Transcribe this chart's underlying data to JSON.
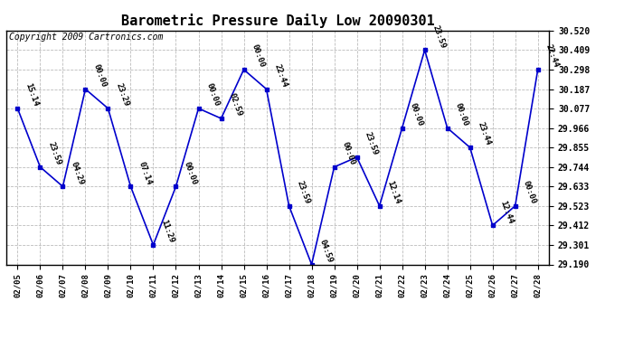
{
  "title": "Barometric Pressure Daily Low 20090301",
  "copyright": "Copyright 2009 Cartronics.com",
  "x_labels": [
    "02/05",
    "02/06",
    "02/07",
    "02/08",
    "02/09",
    "02/10",
    "02/11",
    "02/12",
    "02/13",
    "02/14",
    "02/15",
    "02/16",
    "02/17",
    "02/18",
    "02/19",
    "02/20",
    "02/21",
    "02/22",
    "02/23",
    "02/24",
    "02/25",
    "02/26",
    "02/27",
    "02/28"
  ],
  "y_values": [
    30.077,
    29.744,
    29.633,
    30.187,
    30.077,
    29.633,
    29.301,
    29.633,
    30.077,
    30.02,
    30.298,
    30.187,
    29.523,
    29.19,
    29.744,
    29.8,
    29.523,
    29.966,
    30.409,
    29.966,
    29.855,
    29.412,
    29.523,
    30.298
  ],
  "annotations": [
    "15:14",
    "23:59",
    "04:29",
    "00:00",
    "23:29",
    "07:14",
    "11:29",
    "00:00",
    "00:00",
    "02:59",
    "00:00",
    "22:44",
    "23:59",
    "04:59",
    "00:00",
    "23:59",
    "12:14",
    "00:00",
    "23:59",
    "00:00",
    "23:44",
    "12:44",
    "00:00",
    "22:44"
  ],
  "line_color": "#0000cc",
  "marker_color": "#0000cc",
  "background_color": "#ffffff",
  "grid_color": "#bbbbbb",
  "ylim": [
    29.19,
    30.52
  ],
  "yticks": [
    29.19,
    29.301,
    29.412,
    29.523,
    29.633,
    29.744,
    29.855,
    29.966,
    30.077,
    30.187,
    30.298,
    30.409,
    30.52
  ],
  "title_fontsize": 11,
  "annot_fontsize": 6.5,
  "copyright_fontsize": 7,
  "figwidth": 6.9,
  "figheight": 3.75,
  "dpi": 100
}
